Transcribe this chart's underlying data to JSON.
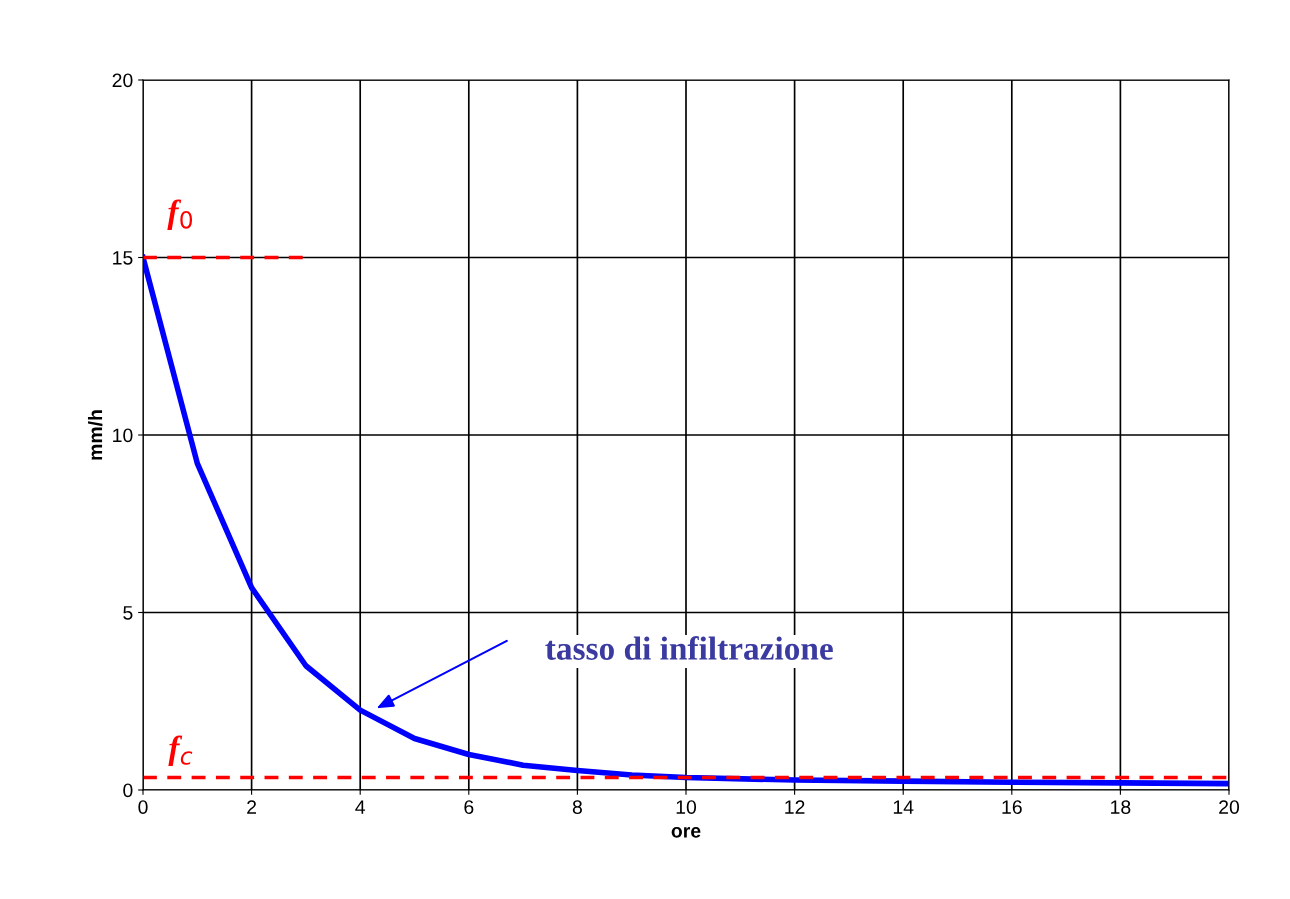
{
  "chart_data": {
    "type": "line",
    "xlabel": "ore",
    "ylabel": "mm/h",
    "xlim": [
      0,
      20
    ],
    "xticks": [
      0,
      2,
      4,
      6,
      8,
      10,
      12,
      14,
      16,
      18,
      20
    ],
    "ylim": [
      0,
      20
    ],
    "yticks": [
      0,
      5,
      10,
      15,
      20
    ],
    "grid": true,
    "marker": "none",
    "series": [
      {
        "color": "#0000ff",
        "line_style": "solid",
        "x": [
          0,
          1,
          2,
          3,
          4,
          5,
          6,
          7,
          8,
          9,
          10,
          12,
          14,
          16,
          18,
          20
        ],
        "values": [
          15,
          9.2,
          5.7,
          3.5,
          2.25,
          1.45,
          1.0,
          0.7,
          0.55,
          0.42,
          0.35,
          0.28,
          0.25,
          0.22,
          0.2,
          0.18
        ]
      },
      {
        "color": "#ff0000",
        "line_style": "dashed",
        "x": [
          0,
          3
        ],
        "values": [
          15,
          15
        ]
      },
      {
        "color": "#ff0000",
        "line_style": "dashed",
        "x": [
          0,
          20
        ],
        "values": [
          0.35,
          0.35
        ]
      }
    ],
    "annotations": [
      "f$_{0}$",
      "f$_{c}$",
      "tasso di infiltrazione"
    ]
  }
}
